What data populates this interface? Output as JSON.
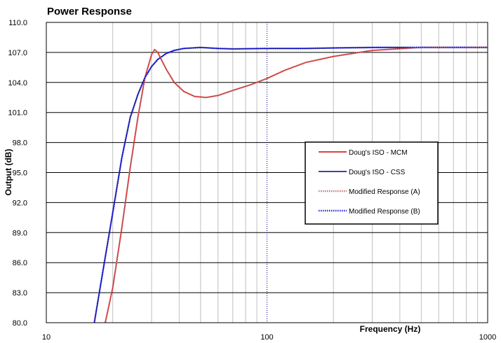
{
  "chart_data": {
    "type": "line",
    "title": "Power Response",
    "xlabel": "Frequency (Hz)",
    "ylabel": "Output (dB)",
    "xscale": "log",
    "xlim": [
      10,
      1000
    ],
    "ylim": [
      80,
      110
    ],
    "xticks": [
      "10",
      "100",
      "1000"
    ],
    "yticks": [
      "80.0",
      "83.0",
      "86.0",
      "89.0",
      "92.0",
      "95.0",
      "98.0",
      "101.0",
      "104.0",
      "107.0",
      "110.0"
    ],
    "grid": true,
    "legend_position": "right",
    "series": [
      {
        "name": "Doug's ISO - MCM",
        "color": "#d40000",
        "style": "solid",
        "x": [
          18.5,
          20,
          22,
          24,
          26,
          28,
          30,
          31,
          32,
          33,
          35,
          38,
          42,
          47,
          53,
          60,
          70,
          85,
          100,
          120,
          150,
          200,
          300,
          500,
          700,
          1000
        ],
        "y": [
          80,
          83.5,
          89.5,
          95.5,
          100.5,
          104.5,
          106.8,
          107.3,
          107.0,
          106.4,
          105.3,
          104.0,
          103.1,
          102.6,
          102.5,
          102.7,
          103.2,
          103.8,
          104.4,
          105.2,
          106.0,
          106.6,
          107.2,
          107.5,
          107.5,
          107.5
        ]
      },
      {
        "name": "Doug's ISO - CSS",
        "color": "#00008b",
        "style": "solid",
        "x": [
          16.5,
          18,
          20,
          22,
          24,
          26,
          28,
          30,
          32,
          35,
          38,
          42,
          46,
          50,
          60,
          70,
          100,
          150,
          200,
          300,
          500,
          700,
          1000
        ],
        "y": [
          80,
          85.0,
          91.0,
          96.5,
          100.5,
          102.8,
          104.5,
          105.6,
          106.3,
          106.9,
          107.2,
          107.4,
          107.45,
          107.5,
          107.4,
          107.35,
          107.4,
          107.4,
          107.45,
          107.5,
          107.5,
          107.5,
          107.5
        ]
      },
      {
        "name": "Modified Response (A)",
        "color": "#c87878",
        "style": "dotted",
        "x": [
          18.5,
          20,
          22,
          24,
          26,
          28,
          30,
          31,
          32,
          33,
          35,
          38,
          42,
          47,
          53,
          60,
          70,
          85,
          100,
          120,
          150,
          200,
          300,
          500,
          700,
          1000
        ],
        "y": [
          80,
          83.5,
          89.5,
          95.5,
          100.5,
          104.5,
          106.8,
          107.3,
          107.0,
          106.4,
          105.3,
          104.0,
          103.1,
          102.6,
          102.5,
          102.7,
          103.2,
          103.8,
          104.4,
          105.2,
          106.0,
          106.6,
          107.2,
          107.5,
          107.5,
          107.5
        ]
      },
      {
        "name": "Modified Response (B)",
        "color": "#2a2ae0",
        "style": "dotted",
        "x": [
          16.5,
          18,
          20,
          22,
          24,
          26,
          28,
          30,
          32,
          35,
          38,
          42,
          46,
          50,
          60,
          70,
          100,
          150,
          200,
          300,
          500,
          700,
          1000
        ],
        "y": [
          80,
          85.0,
          91.0,
          96.5,
          100.5,
          102.8,
          104.5,
          105.6,
          106.3,
          106.9,
          107.2,
          107.4,
          107.45,
          107.5,
          107.4,
          107.35,
          107.4,
          107.4,
          107.45,
          107.5,
          107.5,
          107.5,
          107.5
        ]
      }
    ]
  }
}
